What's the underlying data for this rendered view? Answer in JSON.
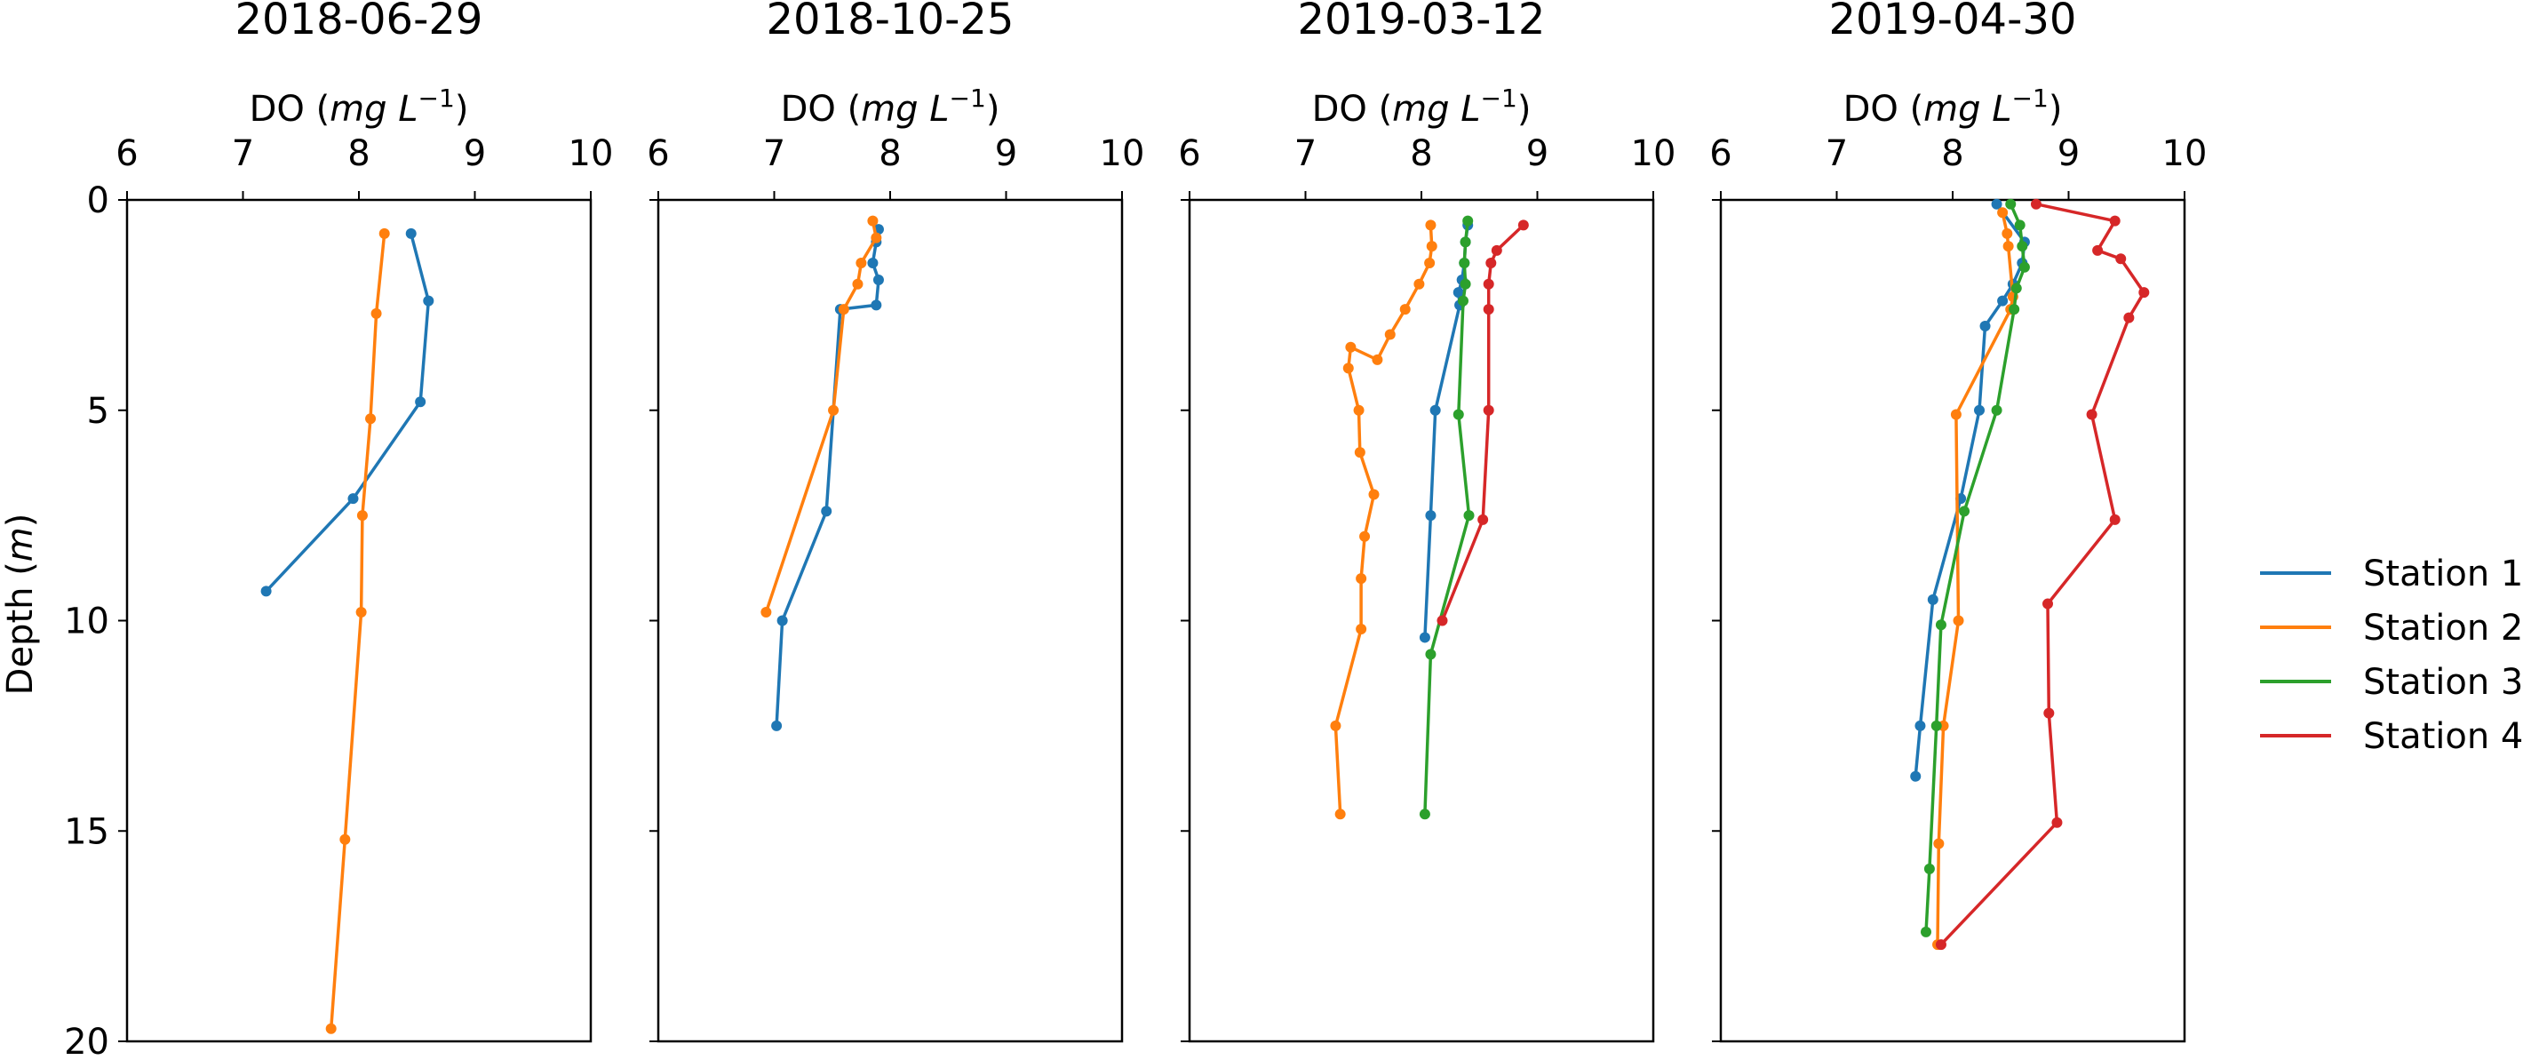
{
  "chart_data": {
    "type": "line",
    "ylabel_text": "Depth (",
    "ylabel_unit": "m",
    "ylabel_close": ")",
    "xlabel_text": "DO (",
    "xlabel_unit_mg": "mg",
    "xlabel_unit_L": "L",
    "xlabel_exp": "−1",
    "xlabel_close": ")",
    "xlim": [
      6,
      10
    ],
    "ylim": [
      0,
      20
    ],
    "y_inverted": true,
    "x_ticks": [
      "6",
      "7",
      "8",
      "9",
      "10"
    ],
    "y_ticks": [
      "0",
      "5",
      "10",
      "15",
      "20"
    ],
    "grid": false,
    "legend_position": "right",
    "legend": [
      {
        "label": "Station 1",
        "color": "#1f77b4"
      },
      {
        "label": "Station 2",
        "color": "#ff7f0e"
      },
      {
        "label": "Station 3",
        "color": "#2ca02c"
      },
      {
        "label": "Station 4",
        "color": "#d62728"
      }
    ],
    "panels": [
      {
        "title": "2018-06-29",
        "series": [
          {
            "name": "Station 1",
            "color": "#1f77b4",
            "x": [
              8.45,
              8.6,
              8.53,
              7.95,
              7.2
            ],
            "y": [
              0.8,
              2.4,
              4.8,
              7.1,
              9.3
            ]
          },
          {
            "name": "Station 2",
            "color": "#ff7f0e",
            "x": [
              8.22,
              8.15,
              8.1,
              8.03,
              8.02,
              7.88,
              7.76
            ],
            "y": [
              0.8,
              2.7,
              5.2,
              7.5,
              9.8,
              15.2,
              19.7
            ]
          }
        ]
      },
      {
        "title": "2018-10-25",
        "series": [
          {
            "name": "Station 1",
            "color": "#1f77b4",
            "x": [
              7.9,
              7.88,
              7.85,
              7.9,
              7.88,
              7.57,
              7.45,
              7.07,
              7.02
            ],
            "y": [
              0.7,
              1.0,
              1.5,
              1.9,
              2.5,
              2.6,
              7.4,
              10.0,
              12.5
            ]
          },
          {
            "name": "Station 2",
            "color": "#ff7f0e",
            "x": [
              7.85,
              7.88,
              7.75,
              7.72,
              7.6,
              7.51,
              6.93
            ],
            "y": [
              0.5,
              0.9,
              1.5,
              2.0,
              2.6,
              5.0,
              9.8
            ]
          }
        ]
      },
      {
        "title": "2019-03-12",
        "series": [
          {
            "name": "Station 1",
            "color": "#1f77b4",
            "x": [
              8.4,
              8.38,
              8.37,
              8.35,
              8.32,
              8.33,
              8.12,
              8.08,
              8.03
            ],
            "y": [
              0.6,
              1.0,
              1.5,
              1.9,
              2.2,
              2.5,
              5.0,
              7.5,
              10.4
            ]
          },
          {
            "name": "Station 2",
            "color": "#ff7f0e",
            "x": [
              8.08,
              8.09,
              8.07,
              7.98,
              7.86,
              7.73,
              7.62,
              7.39,
              7.37,
              7.46,
              7.47,
              7.59,
              7.51,
              7.48,
              7.48,
              7.26,
              7.3
            ],
            "y": [
              0.6,
              1.1,
              1.5,
              2.0,
              2.6,
              3.2,
              3.8,
              3.5,
              4.0,
              5.0,
              6.0,
              7.0,
              8.0,
              9.0,
              10.2,
              12.5,
              14.6
            ]
          },
          {
            "name": "Station 3",
            "color": "#2ca02c",
            "x": [
              8.4,
              8.38,
              8.37,
              8.38,
              8.36,
              8.32,
              8.41,
              8.08,
              8.03
            ],
            "y": [
              0.5,
              1.0,
              1.5,
              2.0,
              2.4,
              5.1,
              7.5,
              10.8,
              14.6
            ]
          },
          {
            "name": "Station 4",
            "color": "#d62728",
            "x": [
              8.88,
              8.65,
              8.6,
              8.58,
              8.58,
              8.58,
              8.53,
              8.18
            ],
            "y": [
              0.6,
              1.2,
              1.5,
              2.0,
              2.6,
              5.0,
              7.6,
              10.0
            ]
          }
        ]
      },
      {
        "title": "2019-04-30",
        "series": [
          {
            "name": "Station 1",
            "color": "#1f77b4",
            "x": [
              8.38,
              8.62,
              8.6,
              8.52,
              8.43,
              8.28,
              8.23,
              8.07,
              7.83,
              7.72,
              7.68
            ],
            "y": [
              0.1,
              1.0,
              1.5,
              2.0,
              2.4,
              3.0,
              5.0,
              7.1,
              9.5,
              12.5,
              13.7
            ]
          },
          {
            "name": "Station 2",
            "color": "#ff7f0e",
            "x": [
              8.43,
              8.47,
              8.48,
              8.52,
              8.5,
              8.03,
              8.05,
              7.92,
              7.88,
              7.87
            ],
            "y": [
              0.3,
              0.8,
              1.1,
              2.3,
              2.6,
              5.1,
              10.0,
              12.5,
              15.3,
              17.7
            ]
          },
          {
            "name": "Station 3",
            "color": "#2ca02c",
            "x": [
              8.5,
              8.58,
              8.6,
              8.62,
              8.55,
              8.53,
              8.38,
              8.1,
              7.9,
              7.86,
              7.8,
              7.77
            ],
            "y": [
              0.1,
              0.6,
              1.1,
              1.6,
              2.1,
              2.6,
              5.0,
              7.4,
              10.1,
              12.5,
              15.9,
              17.4
            ]
          },
          {
            "name": "Station 4",
            "color": "#d62728",
            "x": [
              8.72,
              9.4,
              9.25,
              9.45,
              9.65,
              9.52,
              9.2,
              9.4,
              8.82,
              8.83,
              8.9,
              7.9
            ],
            "y": [
              0.1,
              0.5,
              1.2,
              1.4,
              2.2,
              2.8,
              5.1,
              7.6,
              9.6,
              12.2,
              14.8,
              17.7
            ]
          }
        ]
      }
    ]
  }
}
